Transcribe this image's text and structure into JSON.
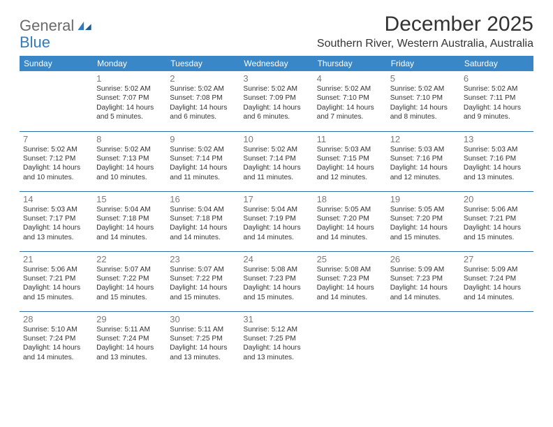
{
  "logo": {
    "part1": "General",
    "part2": "Blue"
  },
  "title": "December 2025",
  "subtitle": "Southern River, Western Australia, Australia",
  "colors": {
    "header_bg": "#3a87c7",
    "header_fg": "#ffffff",
    "row_border": "#2f6fa8",
    "daynum": "#7a7a7a",
    "text": "#333333",
    "logo_gray": "#6a6a6a",
    "logo_blue": "#2f7bbf",
    "page_bg": "#ffffff"
  },
  "day_names": [
    "Sunday",
    "Monday",
    "Tuesday",
    "Wednesday",
    "Thursday",
    "Friday",
    "Saturday"
  ],
  "weeks": [
    [
      null,
      {
        "n": "1",
        "sr": "5:02 AM",
        "ss": "7:07 PM",
        "d": "14 hours and 5 minutes."
      },
      {
        "n": "2",
        "sr": "5:02 AM",
        "ss": "7:08 PM",
        "d": "14 hours and 6 minutes."
      },
      {
        "n": "3",
        "sr": "5:02 AM",
        "ss": "7:09 PM",
        "d": "14 hours and 6 minutes."
      },
      {
        "n": "4",
        "sr": "5:02 AM",
        "ss": "7:10 PM",
        "d": "14 hours and 7 minutes."
      },
      {
        "n": "5",
        "sr": "5:02 AM",
        "ss": "7:10 PM",
        "d": "14 hours and 8 minutes."
      },
      {
        "n": "6",
        "sr": "5:02 AM",
        "ss": "7:11 PM",
        "d": "14 hours and 9 minutes."
      }
    ],
    [
      {
        "n": "7",
        "sr": "5:02 AM",
        "ss": "7:12 PM",
        "d": "14 hours and 10 minutes."
      },
      {
        "n": "8",
        "sr": "5:02 AM",
        "ss": "7:13 PM",
        "d": "14 hours and 10 minutes."
      },
      {
        "n": "9",
        "sr": "5:02 AM",
        "ss": "7:14 PM",
        "d": "14 hours and 11 minutes."
      },
      {
        "n": "10",
        "sr": "5:02 AM",
        "ss": "7:14 PM",
        "d": "14 hours and 11 minutes."
      },
      {
        "n": "11",
        "sr": "5:03 AM",
        "ss": "7:15 PM",
        "d": "14 hours and 12 minutes."
      },
      {
        "n": "12",
        "sr": "5:03 AM",
        "ss": "7:16 PM",
        "d": "14 hours and 12 minutes."
      },
      {
        "n": "13",
        "sr": "5:03 AM",
        "ss": "7:16 PM",
        "d": "14 hours and 13 minutes."
      }
    ],
    [
      {
        "n": "14",
        "sr": "5:03 AM",
        "ss": "7:17 PM",
        "d": "14 hours and 13 minutes."
      },
      {
        "n": "15",
        "sr": "5:04 AM",
        "ss": "7:18 PM",
        "d": "14 hours and 14 minutes."
      },
      {
        "n": "16",
        "sr": "5:04 AM",
        "ss": "7:18 PM",
        "d": "14 hours and 14 minutes."
      },
      {
        "n": "17",
        "sr": "5:04 AM",
        "ss": "7:19 PM",
        "d": "14 hours and 14 minutes."
      },
      {
        "n": "18",
        "sr": "5:05 AM",
        "ss": "7:20 PM",
        "d": "14 hours and 14 minutes."
      },
      {
        "n": "19",
        "sr": "5:05 AM",
        "ss": "7:20 PM",
        "d": "14 hours and 15 minutes."
      },
      {
        "n": "20",
        "sr": "5:06 AM",
        "ss": "7:21 PM",
        "d": "14 hours and 15 minutes."
      }
    ],
    [
      {
        "n": "21",
        "sr": "5:06 AM",
        "ss": "7:21 PM",
        "d": "14 hours and 15 minutes."
      },
      {
        "n": "22",
        "sr": "5:07 AM",
        "ss": "7:22 PM",
        "d": "14 hours and 15 minutes."
      },
      {
        "n": "23",
        "sr": "5:07 AM",
        "ss": "7:22 PM",
        "d": "14 hours and 15 minutes."
      },
      {
        "n": "24",
        "sr": "5:08 AM",
        "ss": "7:23 PM",
        "d": "14 hours and 15 minutes."
      },
      {
        "n": "25",
        "sr": "5:08 AM",
        "ss": "7:23 PM",
        "d": "14 hours and 14 minutes."
      },
      {
        "n": "26",
        "sr": "5:09 AM",
        "ss": "7:23 PM",
        "d": "14 hours and 14 minutes."
      },
      {
        "n": "27",
        "sr": "5:09 AM",
        "ss": "7:24 PM",
        "d": "14 hours and 14 minutes."
      }
    ],
    [
      {
        "n": "28",
        "sr": "5:10 AM",
        "ss": "7:24 PM",
        "d": "14 hours and 14 minutes."
      },
      {
        "n": "29",
        "sr": "5:11 AM",
        "ss": "7:24 PM",
        "d": "14 hours and 13 minutes."
      },
      {
        "n": "30",
        "sr": "5:11 AM",
        "ss": "7:25 PM",
        "d": "14 hours and 13 minutes."
      },
      {
        "n": "31",
        "sr": "5:12 AM",
        "ss": "7:25 PM",
        "d": "14 hours and 13 minutes."
      },
      null,
      null,
      null
    ]
  ],
  "labels": {
    "sunrise": "Sunrise:",
    "sunset": "Sunset:",
    "daylight": "Daylight:"
  }
}
